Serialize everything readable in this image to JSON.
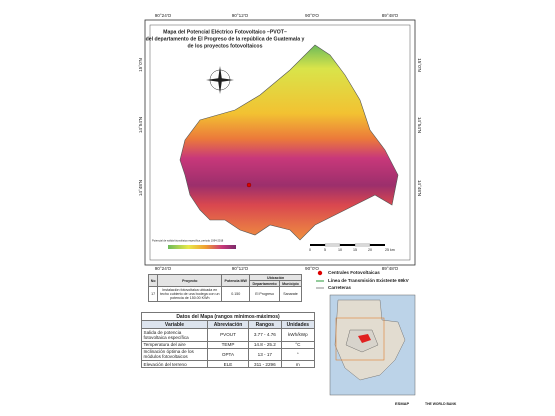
{
  "map": {
    "title": [
      "Mapa del Potencial Eléctrico Fotovoltaico –PVOT–",
      "del departamento de El Progreso de la república de Guatemala y",
      "de los proyectos fotovoltaicos"
    ],
    "lon_labels": [
      "90°24'O",
      "90°12'O",
      "90°0'O",
      "89°48'O"
    ],
    "lat_labels": [
      "15°0'N",
      "14°54'N",
      "14°48'N"
    ],
    "legend_caption": "Potencial de salida fotovoltaica específica, periodo 1994-2018",
    "scale_labels": [
      "0",
      "5",
      "10",
      "15",
      "20",
      "25 km"
    ]
  },
  "projects_table": {
    "headers": {
      "no": "No",
      "project": "Proyecto",
      "power": "Potencia MW",
      "location": "Ubicación",
      "department": "Departamento",
      "municipality": "Municipio"
    },
    "rows": [
      [
        "17",
        "Instalación fotovoltaica ubicada en techo cubierto de una bodega con un potencia de 150.00 KWh",
        "0.150",
        "El Progreso",
        "Sanarate"
      ]
    ]
  },
  "legend": [
    "Centrales Fotovoltaicas",
    "Línea de Transmisión Existente 69kV",
    "Carreteras"
  ],
  "data_table": {
    "title": "Datos del Mapa (rangos mínimos-máximos)",
    "columns": [
      "Variable",
      "Abreviación",
      "Rangos",
      "Unidades"
    ],
    "rows": [
      [
        "Salida de potencia fotovoltaica específica",
        "PVOUT",
        "3.77 - 4.76",
        "kWh/kWp"
      ],
      [
        "Temperatura del aire",
        "TEMP",
        "14.8 - 25.2",
        "°C"
      ],
      [
        "Inclinación óptima de los módulos fotovoltaicos",
        "OPTA",
        "13 - 17",
        "°"
      ],
      [
        "Elevación del terreno",
        "ELE",
        "311 - 2296",
        "m"
      ]
    ]
  },
  "logos": [
    "ESMAP",
    "THE WORLD BANK"
  ]
}
